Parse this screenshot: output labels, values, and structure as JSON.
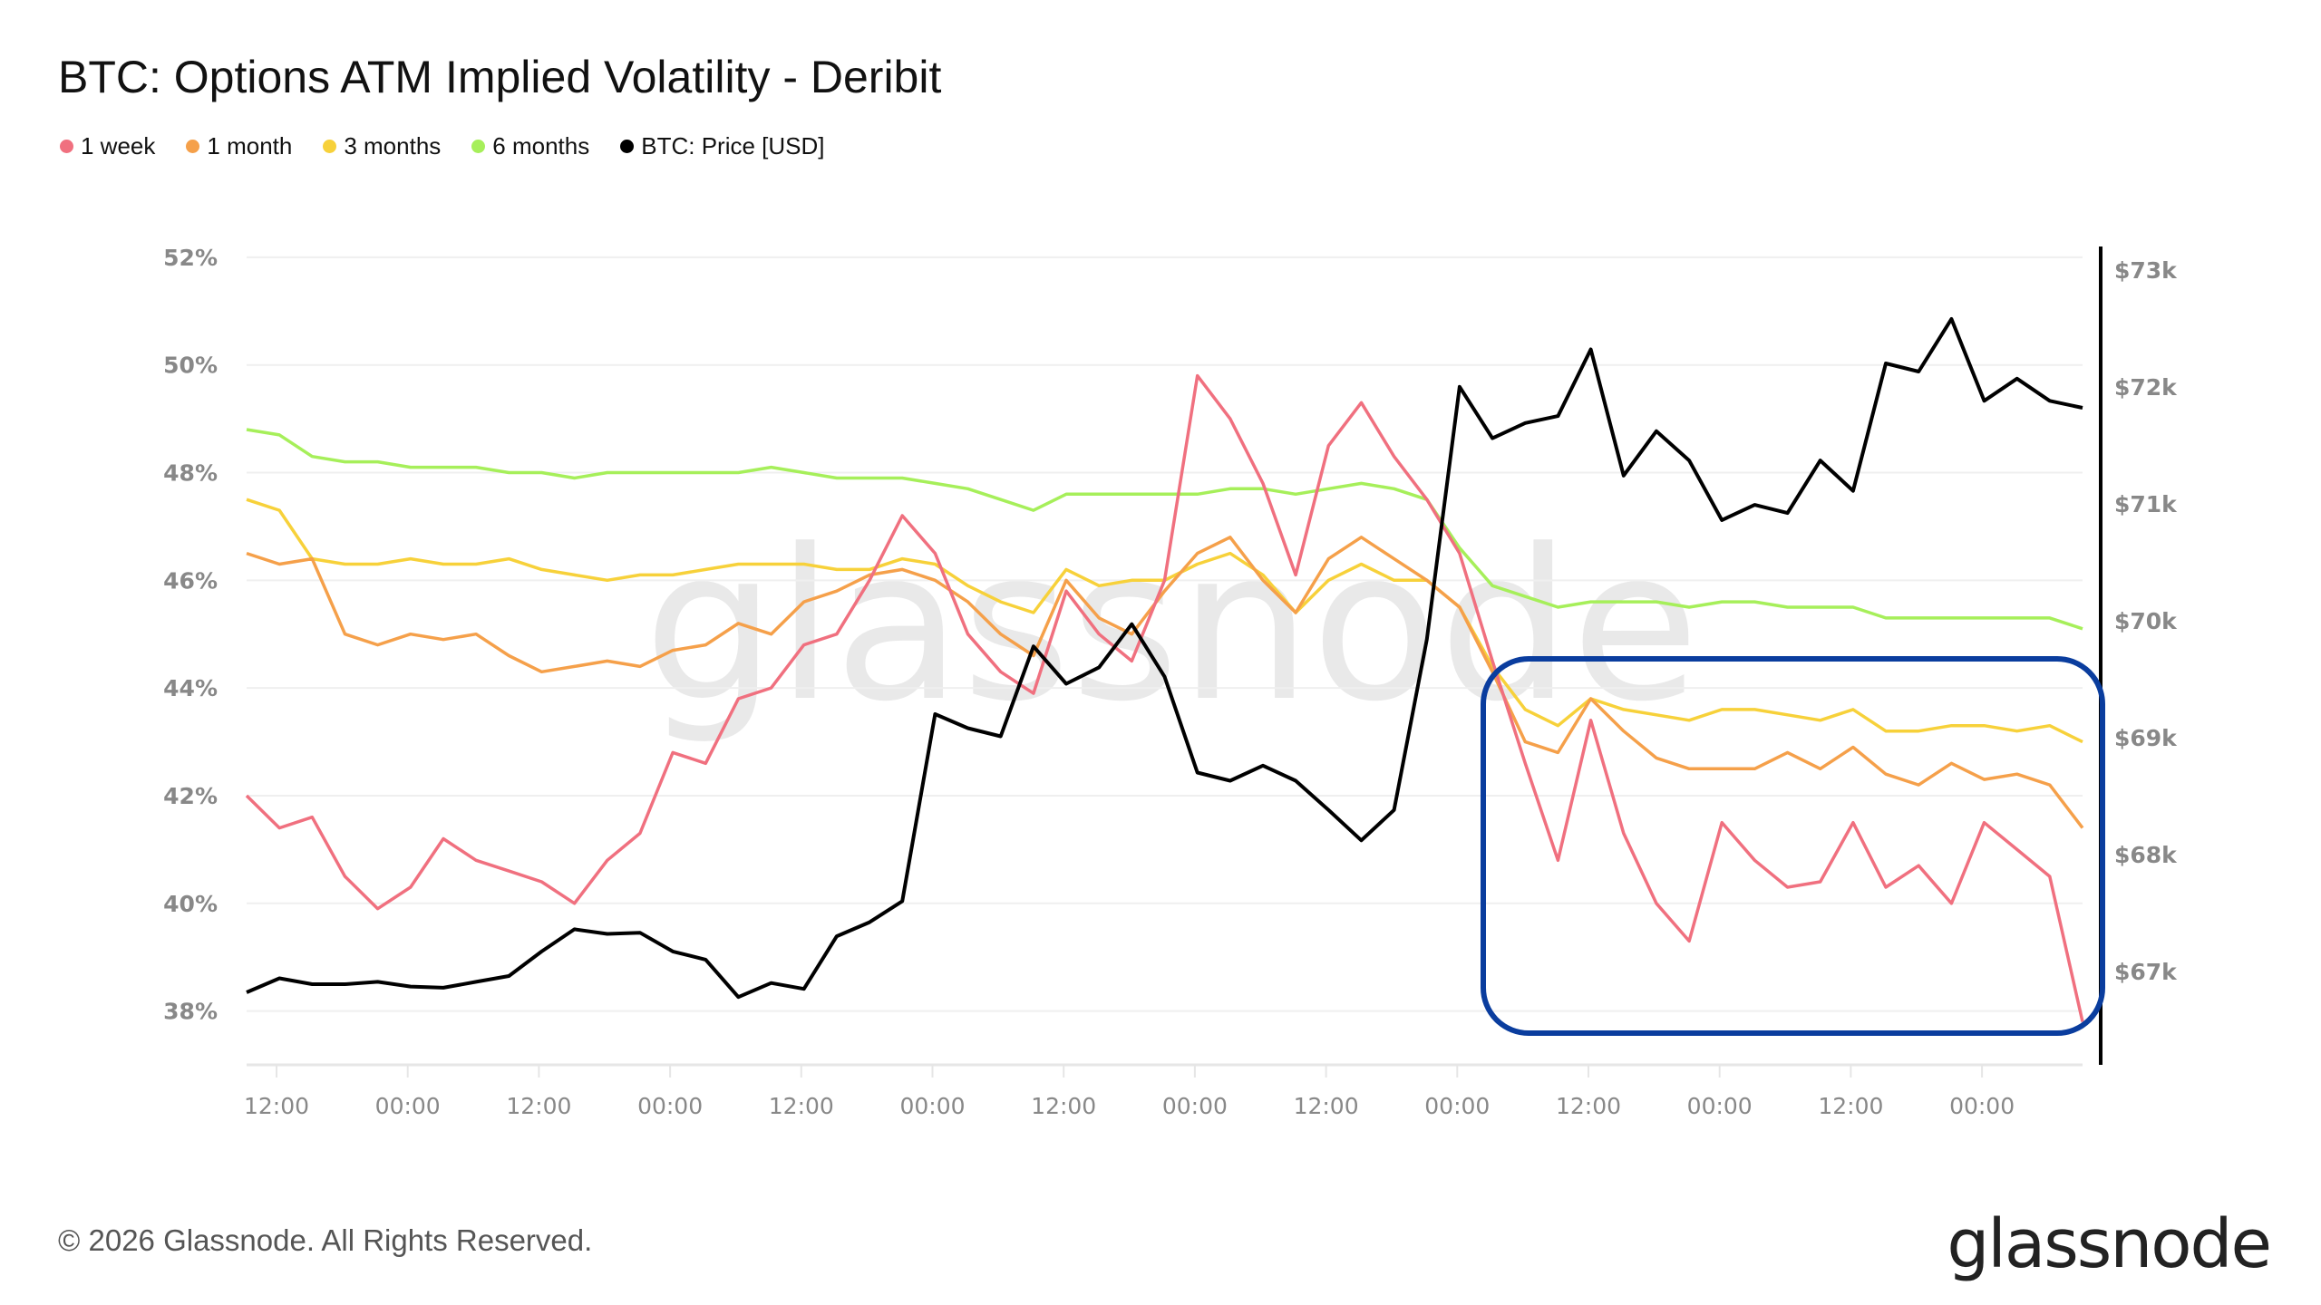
{
  "title": "BTC: Options ATM Implied Volatility - Deribit",
  "footer": "© 2026 Glassnode. All Rights Reserved.",
  "logo": "glassnode",
  "watermark": "glassnode",
  "legend": [
    {
      "label": "1 week",
      "color": "#f0707f"
    },
    {
      "label": "1 month",
      "color": "#f5a04a"
    },
    {
      "label": "3 months",
      "color": "#f7d13a"
    },
    {
      "label": "6 months",
      "color": "#a6ef5a"
    },
    {
      "label": "BTC: Price [USD]",
      "color": "#000000"
    }
  ],
  "highlight_box_color": "#0a3d9e",
  "chart_data": {
    "type": "line",
    "title": "BTC: Options ATM Implied Volatility - Deribit",
    "grid": true,
    "legend_placement": "top-left",
    "x_ticks": [
      "12:00",
      "00:00",
      "12:00",
      "00:00",
      "12:00",
      "00:00",
      "12:00",
      "00:00",
      "12:00",
      "00:00",
      "12:00",
      "00:00",
      "12:00",
      "00:00"
    ],
    "y_left": {
      "ticks": [
        "52%",
        "50%",
        "48%",
        "46%",
        "44%",
        "42%",
        "40%",
        "38%"
      ],
      "tick_values": [
        52,
        50,
        48,
        46,
        44,
        42,
        40,
        38
      ],
      "range": [
        37,
        52.2
      ]
    },
    "y_right": {
      "ticks": [
        "$73k",
        "$72k",
        "$71k",
        "$70k",
        "$69k",
        "$68k",
        "$67k"
      ],
      "tick_values": [
        73,
        72,
        71,
        70,
        69,
        68,
        67
      ],
      "range": [
        66.2,
        73.2
      ]
    },
    "sampling": "every 3 hours",
    "series": [
      {
        "name": "1 week",
        "axis": "left",
        "color": "#f0707f",
        "values": [
          42.0,
          41.4,
          41.6,
          40.5,
          39.9,
          40.3,
          41.2,
          40.8,
          40.6,
          40.4,
          40.0,
          40.8,
          41.3,
          42.8,
          42.6,
          43.8,
          44.0,
          44.8,
          45.0,
          46.0,
          47.2,
          46.5,
          45.0,
          44.3,
          43.9,
          45.8,
          45.0,
          44.5,
          46.0,
          49.8,
          49.0,
          47.8,
          46.1,
          48.5,
          49.3,
          48.3,
          47.5,
          46.5,
          44.5,
          42.6,
          40.8,
          43.4,
          41.3,
          40.0,
          39.3,
          41.5,
          40.8,
          40.3,
          40.4,
          41.5,
          40.3,
          40.7,
          40.0,
          41.5,
          41.0,
          40.5,
          37.8
        ]
      },
      {
        "name": "1 month",
        "axis": "left",
        "color": "#f5a04a",
        "values": [
          46.5,
          46.3,
          46.4,
          45.0,
          44.8,
          45.0,
          44.9,
          45.0,
          44.6,
          44.3,
          44.4,
          44.5,
          44.4,
          44.7,
          44.8,
          45.2,
          45.0,
          45.6,
          45.8,
          46.1,
          46.2,
          46.0,
          45.6,
          45.0,
          44.6,
          46.0,
          45.3,
          45.0,
          45.8,
          46.5,
          46.8,
          46.0,
          45.4,
          46.4,
          46.8,
          46.4,
          46.0,
          45.5,
          44.3,
          43.0,
          42.8,
          43.8,
          43.2,
          42.7,
          42.5,
          42.5,
          42.5,
          42.8,
          42.5,
          42.9,
          42.4,
          42.2,
          42.6,
          42.3,
          42.4,
          42.2,
          41.4
        ]
      },
      {
        "name": "3 months",
        "axis": "left",
        "color": "#f7d13a",
        "values": [
          47.5,
          47.3,
          46.4,
          46.3,
          46.3,
          46.4,
          46.3,
          46.3,
          46.4,
          46.2,
          46.1,
          46.0,
          46.1,
          46.1,
          46.2,
          46.3,
          46.3,
          46.3,
          46.2,
          46.2,
          46.4,
          46.3,
          45.9,
          45.6,
          45.4,
          46.2,
          45.9,
          46.0,
          46.0,
          46.3,
          46.5,
          46.1,
          45.4,
          46.0,
          46.3,
          46.0,
          46.0,
          45.5,
          44.4,
          43.6,
          43.3,
          43.8,
          43.6,
          43.5,
          43.4,
          43.6,
          43.6,
          43.5,
          43.4,
          43.6,
          43.2,
          43.2,
          43.3,
          43.3,
          43.2,
          43.3,
          43.0
        ]
      },
      {
        "name": "6 months",
        "axis": "left",
        "color": "#a6ef5a",
        "values": [
          48.8,
          48.7,
          48.3,
          48.2,
          48.2,
          48.1,
          48.1,
          48.1,
          48.0,
          48.0,
          47.9,
          48.0,
          48.0,
          48.0,
          48.0,
          48.0,
          48.1,
          48.0,
          47.9,
          47.9,
          47.9,
          47.8,
          47.7,
          47.5,
          47.3,
          47.6,
          47.6,
          47.6,
          47.6,
          47.6,
          47.7,
          47.7,
          47.6,
          47.7,
          47.8,
          47.7,
          47.5,
          46.6,
          45.9,
          45.7,
          45.5,
          45.6,
          45.6,
          45.6,
          45.5,
          45.6,
          45.6,
          45.5,
          45.5,
          45.5,
          45.3,
          45.3,
          45.3,
          45.3,
          45.3,
          45.3,
          45.1
        ]
      },
      {
        "name": "BTC: Price [USD]",
        "axis": "right",
        "unit": "$k",
        "color": "#000000",
        "values": [
          66.82,
          66.94,
          66.89,
          66.89,
          66.91,
          66.87,
          66.86,
          66.91,
          66.96,
          67.17,
          67.36,
          67.32,
          67.33,
          67.17,
          67.1,
          66.78,
          66.9,
          66.85,
          67.3,
          67.42,
          67.6,
          69.2,
          69.08,
          69.01,
          69.78,
          69.46,
          69.6,
          69.97,
          69.52,
          68.7,
          68.63,
          68.76,
          68.63,
          68.38,
          68.12,
          68.38,
          69.84,
          72.0,
          71.56,
          71.69,
          71.75,
          72.32,
          71.24,
          71.62,
          71.37,
          70.86,
          70.99,
          70.92,
          71.37,
          71.11,
          72.2,
          72.13,
          72.58,
          71.88,
          72.07,
          71.88,
          71.82
        ]
      }
    ]
  }
}
